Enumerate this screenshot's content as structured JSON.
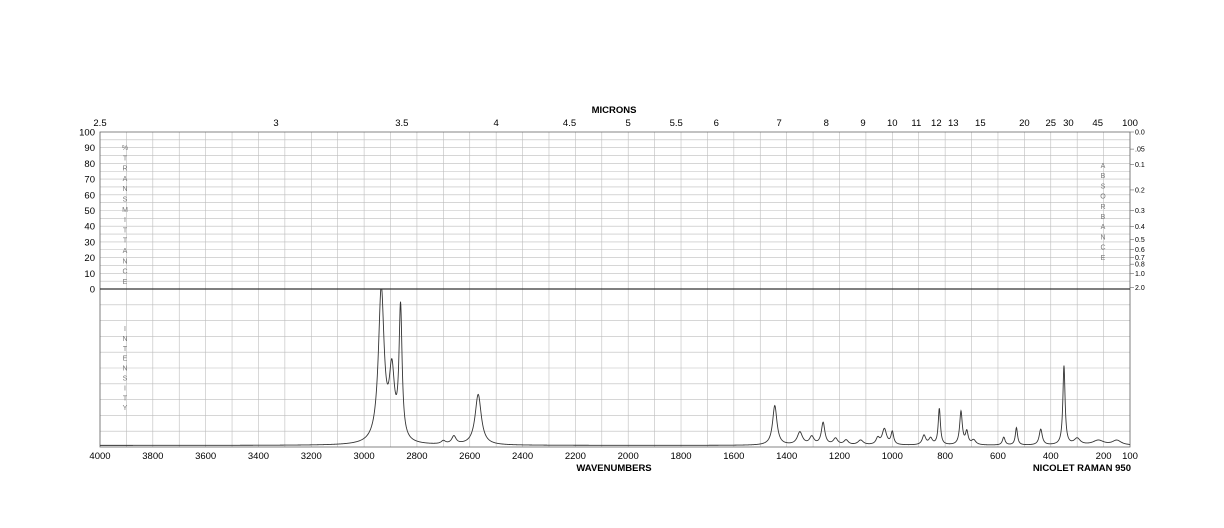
{
  "chart_data": {
    "type": "line",
    "title": "",
    "top_axis_label": "MICRONS",
    "xlabel": "WAVENUMBERS",
    "instrument": "NICOLET RAMAN 950",
    "xlim": [
      4000,
      100
    ],
    "x_ticks": [
      "4000",
      "3800",
      "3600",
      "3400",
      "3200",
      "3000",
      "2800",
      "2600",
      "2400",
      "2200",
      "2000",
      "1800",
      "1600",
      "1400",
      "1200",
      "1000",
      "800",
      "600",
      "400",
      "200",
      "100"
    ],
    "micron_ticks": [
      {
        "label": "2.5",
        "micron": 2.5
      },
      {
        "label": "3",
        "micron": 3
      },
      {
        "label": "3.5",
        "micron": 3.5
      },
      {
        "label": "4",
        "micron": 4
      },
      {
        "label": "4.5",
        "micron": 4.5
      },
      {
        "label": "5",
        "micron": 5
      },
      {
        "label": "5.5",
        "micron": 5.5
      },
      {
        "label": "6",
        "micron": 6
      },
      {
        "label": "7",
        "micron": 7
      },
      {
        "label": "8",
        "micron": 8
      },
      {
        "label": "9",
        "micron": 9
      },
      {
        "label": "10",
        "micron": 10
      },
      {
        "label": "11",
        "micron": 11
      },
      {
        "label": "12",
        "micron": 12
      },
      {
        "label": "13",
        "micron": 13
      },
      {
        "label": "15",
        "micron": 15
      },
      {
        "label": "20",
        "micron": 20
      },
      {
        "label": "25",
        "micron": 25
      },
      {
        "label": "30",
        "micron": 30
      },
      {
        "label": "45",
        "micron": 45
      },
      {
        "label": "100",
        "micron": 100
      }
    ],
    "transmittance_ticks": [
      "100",
      "90",
      "80",
      "70",
      "60",
      "50",
      "40",
      "30",
      "20",
      "10",
      "0"
    ],
    "absorbance_ticks": [
      {
        "label": "0.0",
        "t": 100
      },
      {
        "label": ".05",
        "t": 89.1
      },
      {
        "label": "0.1",
        "t": 79.4
      },
      {
        "label": "0.2",
        "t": 63.1
      },
      {
        "label": "0.3",
        "t": 50.1
      },
      {
        "label": "0.4",
        "t": 39.8
      },
      {
        "label": "0.5",
        "t": 31.6
      },
      {
        "label": "0.6",
        "t": 25.1
      },
      {
        "label": "0.7",
        "t": 20
      },
      {
        "label": "0.8",
        "t": 15.8
      },
      {
        "label": "1.0",
        "t": 10
      },
      {
        "label": "2.0",
        "t": 1
      }
    ],
    "left_upper_letters": [
      "%",
      "T",
      "R",
      "A",
      "N",
      "S",
      "M",
      "I",
      "T",
      "T",
      "A",
      "N",
      "C",
      "E"
    ],
    "left_lower_letters": [
      "I",
      "N",
      "T",
      "E",
      "N",
      "S",
      "I",
      "T",
      "Y"
    ],
    "right_letters": [
      "A",
      "B",
      "S",
      "O",
      "R",
      "B",
      "A",
      "N",
      "C",
      "E"
    ],
    "intensity_range": [
      0,
      1
    ],
    "series": [
      {
        "baseline": 0.01,
        "peaks": [
          {
            "x": 2935,
            "h": 0.97,
            "w": 13
          },
          {
            "x": 2895,
            "h": 0.42,
            "w": 12
          },
          {
            "x": 2862,
            "h": 0.83,
            "w": 7
          },
          {
            "x": 2700,
            "h": 0.02,
            "w": 10
          },
          {
            "x": 2660,
            "h": 0.05,
            "w": 10
          },
          {
            "x": 2568,
            "h": 0.32,
            "w": 14
          },
          {
            "x": 1445,
            "h": 0.25,
            "w": 10
          },
          {
            "x": 1350,
            "h": 0.08,
            "w": 12
          },
          {
            "x": 1305,
            "h": 0.05,
            "w": 10
          },
          {
            "x": 1262,
            "h": 0.14,
            "w": 8
          },
          {
            "x": 1215,
            "h": 0.04,
            "w": 10
          },
          {
            "x": 1175,
            "h": 0.03,
            "w": 10
          },
          {
            "x": 1120,
            "h": 0.03,
            "w": 12
          },
          {
            "x": 1055,
            "h": 0.04,
            "w": 8
          },
          {
            "x": 1030,
            "h": 0.1,
            "w": 10
          },
          {
            "x": 1000,
            "h": 0.08,
            "w": 6
          },
          {
            "x": 880,
            "h": 0.06,
            "w": 8
          },
          {
            "x": 855,
            "h": 0.04,
            "w": 8
          },
          {
            "x": 822,
            "h": 0.23,
            "w": 5
          },
          {
            "x": 740,
            "h": 0.21,
            "w": 6
          },
          {
            "x": 718,
            "h": 0.08,
            "w": 6
          },
          {
            "x": 692,
            "h": 0.03,
            "w": 10
          },
          {
            "x": 578,
            "h": 0.05,
            "w": 6
          },
          {
            "x": 530,
            "h": 0.11,
            "w": 5
          },
          {
            "x": 438,
            "h": 0.1,
            "w": 7
          },
          {
            "x": 350,
            "h": 0.5,
            "w": 5
          },
          {
            "x": 300,
            "h": 0.04,
            "w": 14
          },
          {
            "x": 220,
            "h": 0.03,
            "w": 25
          },
          {
            "x": 150,
            "h": 0.03,
            "w": 20
          }
        ]
      }
    ]
  }
}
